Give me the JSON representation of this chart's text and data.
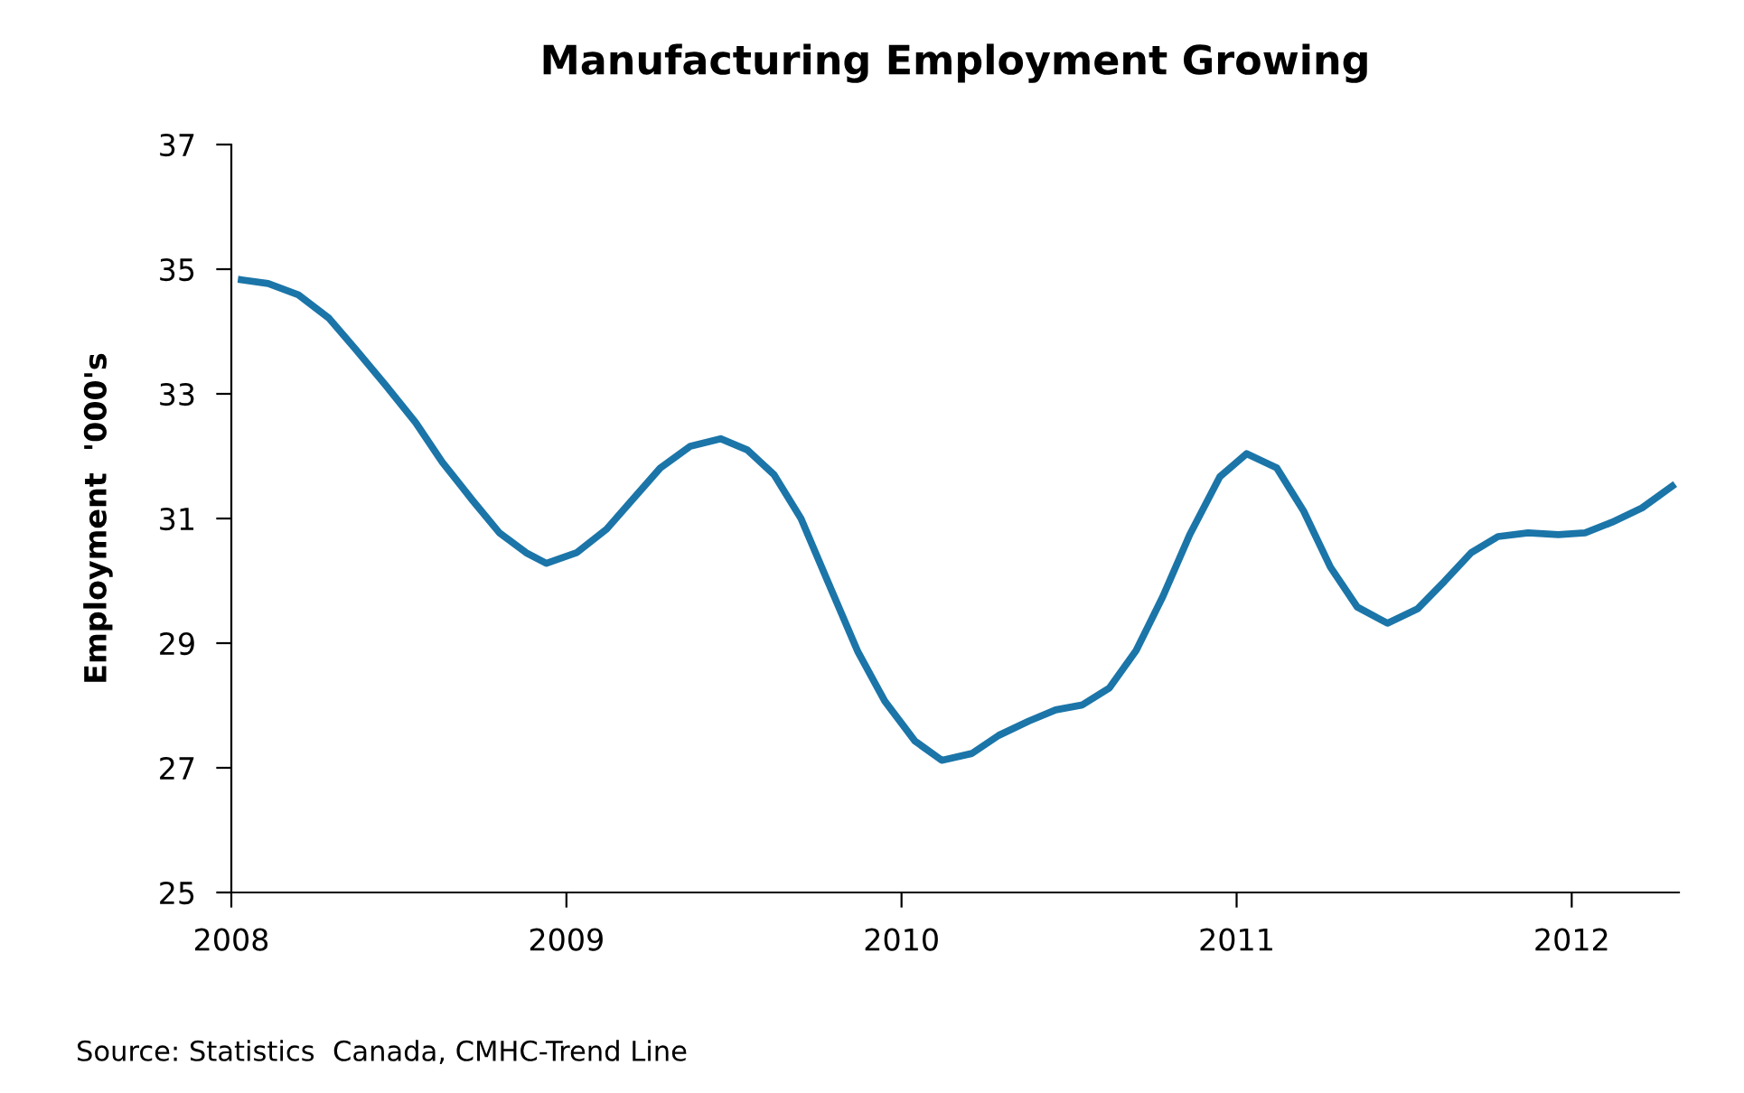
{
  "chart_data": {
    "type": "line",
    "title": "Manufacturing Employment Growing",
    "ylabel": "Employment  '000's",
    "annotations": [
      "Source: Statistics  Canada, CMHC-Trend Line"
    ],
    "x": [
      2008.03,
      2008.11,
      2008.2,
      2008.29,
      2008.37,
      2008.46,
      2008.55,
      2008.63,
      2008.72,
      2008.8,
      2008.88,
      2008.94,
      2009.03,
      2009.12,
      2009.2,
      2009.28,
      2009.37,
      2009.46,
      2009.54,
      2009.62,
      2009.7,
      2009.78,
      2009.87,
      2009.95,
      2010.04,
      2010.12,
      2010.21,
      2010.29,
      2010.38,
      2010.46,
      2010.54,
      2010.62,
      2010.7,
      2010.78,
      2010.86,
      2010.95,
      2011.03,
      2011.12,
      2011.2,
      2011.28,
      2011.36,
      2011.45,
      2011.54,
      2011.62,
      2011.7,
      2011.78,
      2011.87,
      2011.96,
      2012.04,
      2012.12,
      2012.21,
      2012.3
    ],
    "series": [
      {
        "color": "#1b75a8",
        "values": [
          34.83,
          34.77,
          34.59,
          34.22,
          33.72,
          33.14,
          32.54,
          31.9,
          31.29,
          30.77,
          30.45,
          30.28,
          30.45,
          30.83,
          31.32,
          31.81,
          32.16,
          32.28,
          32.1,
          31.7,
          31.0,
          29.99,
          28.86,
          28.07,
          27.43,
          27.12,
          27.23,
          27.52,
          27.75,
          27.93,
          28.01,
          28.28,
          28.88,
          29.75,
          30.74,
          31.67,
          32.04,
          31.81,
          31.12,
          30.22,
          29.58,
          29.32,
          29.55,
          29.99,
          30.45,
          30.71,
          30.77,
          30.74,
          30.77,
          30.94,
          31.17,
          31.52
        ]
      }
    ],
    "xlim": [
      2008,
      2012.32
    ],
    "xticks": [
      2008,
      2009,
      2010,
      2011,
      2012
    ],
    "ylim": [
      25,
      37
    ],
    "yticks": [
      25,
      27,
      29,
      31,
      33,
      35,
      37
    ],
    "grid": false,
    "legend": false,
    "marker": "none",
    "line_style": "solid"
  }
}
